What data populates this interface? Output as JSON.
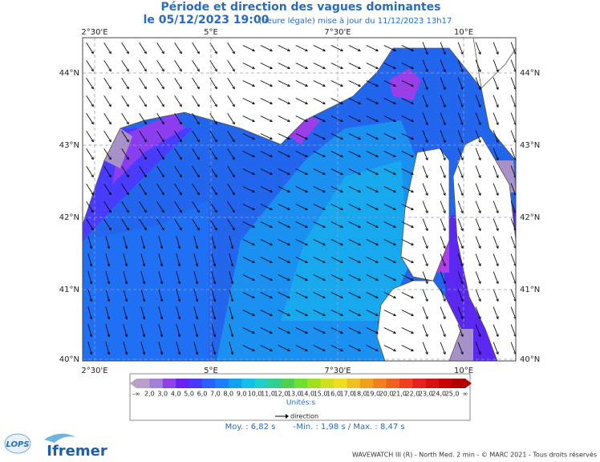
{
  "header": {
    "title": "Période et direction des vagues dominantes",
    "date": "le 05/12/2023 19:00",
    "update": "(heure légale) mise à jour du 11/12/2023 13h17"
  },
  "map": {
    "lon_labels": [
      "2°30'E",
      "5°E",
      "7°30'E",
      "10°E"
    ],
    "lat_labels": [
      "44°N",
      "43°N",
      "42°N",
      "41°N",
      "40°N"
    ]
  },
  "legend": {
    "labels": [
      "-∞",
      "2,0",
      "3,0",
      "4,0",
      "5,0",
      "6,0",
      "7,0",
      "8,0",
      "9,0",
      "10,0",
      "11,0",
      "12,0",
      "13,0",
      "14,0",
      "15,0",
      "16,0",
      "17,0",
      "18,0",
      "19,0",
      "20,0",
      "21,0",
      "22,0",
      "23,0",
      "24,0",
      "25,0",
      "∞"
    ],
    "colors": [
      "#b8a0c8",
      "#a080d8",
      "#9040e8",
      "#6a20f0",
      "#4838ff",
      "#2a60ff",
      "#1a80ff",
      "#10a0f0",
      "#10c0e8",
      "#20d0c8",
      "#30d090",
      "#50d050",
      "#70e030",
      "#a0e020",
      "#d0e020",
      "#f0e020",
      "#f0c020",
      "#f0a020",
      "#f08020",
      "#f06020",
      "#f04020",
      "#e82020",
      "#d81010",
      "#c80000",
      "#b00000"
    ],
    "unit": "Unités:s",
    "direction": "direction"
  },
  "stats": {
    "mean": "Moy. : 6,82 s",
    "separator": "-",
    "minmax": "Min. : 1,98 s / Max. : 8,47 s"
  },
  "footer": {
    "credit": "WAVEWATCH III (R) - North Med. 2 min - © MARC 2021 - Tous droits réservés",
    "logo_lops": "LOPS",
    "logo_ifremer": "Ifremer"
  }
}
